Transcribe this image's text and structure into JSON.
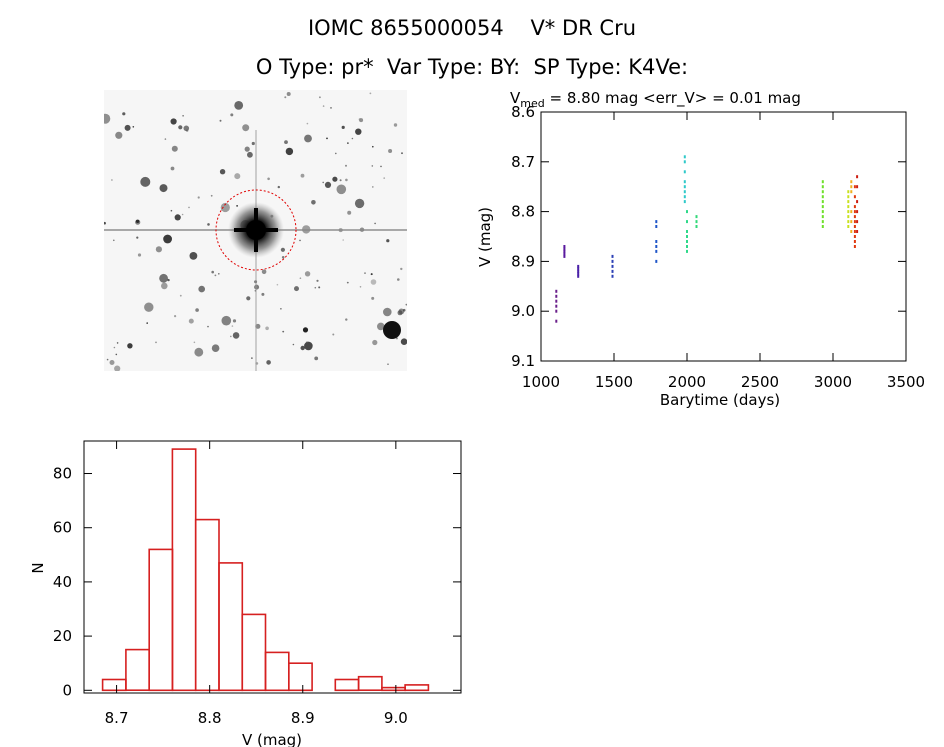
{
  "header": {
    "line1": "IOMC 8655000054    V* DR Cru",
    "line2": "O Type: pr*  Var Type: BY:  SP Type: K4Ve:"
  },
  "image_panel": {
    "kind": "sky-finding-chart",
    "circle_color": "#e00000"
  },
  "chart_data": [
    {
      "type": "scatter",
      "title_sub": "med",
      "title_value": " = 8.80 mag <err_V> = 0.01 mag",
      "xlabel": "Barytime (days)",
      "ylabel": "V (mag)",
      "xlim": [
        1000,
        3500
      ],
      "ylim": [
        9.1,
        8.6
      ],
      "xticks": [
        "1000",
        "1500",
        "2000",
        "2500",
        "3000",
        "3500"
      ],
      "yticks": [
        "8.6",
        "8.7",
        "8.8",
        "8.9",
        "9.0",
        "9.1"
      ],
      "groups": [
        {
          "x": 1105,
          "y": [
            8.96,
            8.97,
            8.98,
            8.99,
            9.0,
            9.02
          ],
          "color": "#6a1f8a"
        },
        {
          "x": 1160,
          "y": [
            8.87,
            8.875,
            8.88,
            8.885,
            8.89
          ],
          "color": "#5a1a9e"
        },
        {
          "x": 1255,
          "y": [
            8.91,
            8.915,
            8.92,
            8.925,
            8.93
          ],
          "color": "#4a21a8"
        },
        {
          "x": 1490,
          "y": [
            8.89,
            8.9,
            8.91,
            8.92,
            8.93
          ],
          "color": "#2b3fb5"
        },
        {
          "x": 1790,
          "y": [
            8.82,
            8.83,
            8.86,
            8.87,
            8.88,
            8.9
          ],
          "color": "#1f55c8"
        },
        {
          "x": 1985,
          "y": [
            8.69,
            8.7,
            8.72,
            8.74,
            8.75,
            8.76,
            8.77,
            8.78
          ],
          "color": "#2fc9c9"
        },
        {
          "x": 2000,
          "y": [
            8.8,
            8.82,
            8.84,
            8.85,
            8.86,
            8.87,
            8.88
          ],
          "color": "#2fd98a"
        },
        {
          "x": 2065,
          "y": [
            8.81,
            8.82,
            8.83
          ],
          "color": "#33d97a"
        },
        {
          "x": 2930,
          "y": [
            8.74,
            8.75,
            8.76,
            8.77,
            8.78,
            8.79,
            8.8,
            8.81,
            8.82,
            8.83
          ],
          "color": "#6ee02a"
        },
        {
          "x": 3105,
          "y": [
            8.76,
            8.77,
            8.78,
            8.79,
            8.8,
            8.81,
            8.82,
            8.83
          ],
          "color": "#c9e020"
        },
        {
          "x": 3125,
          "y": [
            8.74,
            8.75,
            8.76,
            8.8,
            8.82,
            8.84
          ],
          "color": "#f0b020"
        },
        {
          "x": 3150,
          "y": [
            8.75,
            8.77,
            8.79,
            8.8,
            8.81,
            8.82,
            8.83,
            8.84,
            8.85,
            8.86,
            8.87
          ],
          "color": "#e03a10"
        },
        {
          "x": 3165,
          "y": [
            8.73,
            8.75,
            8.78,
            8.8,
            8.82,
            8.84
          ],
          "color": "#cc1c10"
        }
      ],
      "background": "#ffffff"
    },
    {
      "type": "bar",
      "xlabel": "V (mag)",
      "ylabel": "N",
      "xlim": [
        8.665,
        9.07
      ],
      "ylim": [
        -1,
        92
      ],
      "xticks": [
        "8.7",
        "8.8",
        "8.9",
        "9.0"
      ],
      "yticks": [
        "0",
        "20",
        "40",
        "60",
        "80"
      ],
      "bin_width": 0.025,
      "bins_start": [
        8.685,
        8.71,
        8.735,
        8.76,
        8.785,
        8.81,
        8.835,
        8.86,
        8.885,
        8.91,
        8.935,
        8.96,
        8.985,
        9.01
      ],
      "values": [
        4,
        15,
        52,
        89,
        63,
        47,
        28,
        14,
        10,
        0,
        4,
        5,
        1,
        2
      ],
      "bar_color": "#d62020"
    }
  ]
}
